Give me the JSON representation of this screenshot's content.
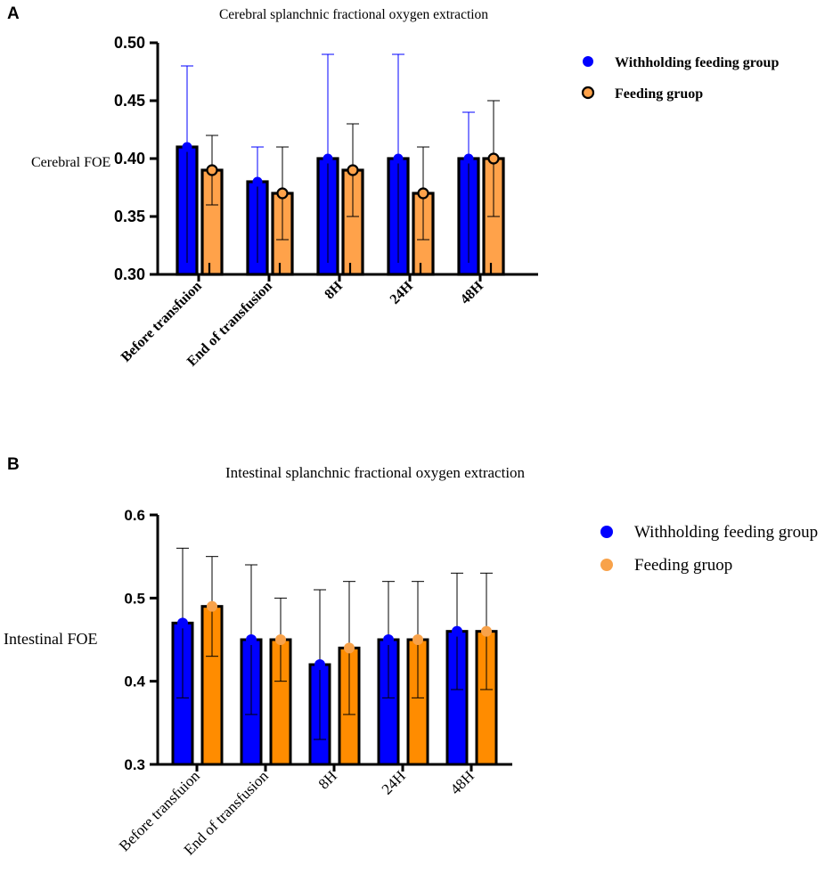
{
  "chart_data": [
    {
      "panel": "A",
      "type": "bar",
      "title": "Cerebral splanchnic fractional oxygen extraction",
      "xlabel": "",
      "ylabel": "Cerebral FOE",
      "ylim": [
        0.3,
        0.5
      ],
      "yticks": [
        0.3,
        0.35,
        0.4,
        0.45,
        0.5
      ],
      "ytick_labels": [
        "0.30",
        "0.35",
        "0.40",
        "0.45",
        "0.50"
      ],
      "grid": false,
      "legend_position": "right",
      "categories": [
        "Before transfuion",
        "End of transfusion",
        "8H",
        "24H",
        "48H"
      ],
      "series": [
        {
          "name": "Withholding feeding group",
          "color": "#0000ff",
          "values": [
            0.41,
            0.38,
            0.4,
            0.4,
            0.4
          ],
          "error_upper": [
            0.48,
            0.41,
            0.49,
            0.49,
            0.44
          ],
          "error_lower": [
            0.31,
            0.31,
            0.31,
            0.31,
            0.31
          ]
        },
        {
          "name": "Feeding gruop",
          "color": "#ffa24a",
          "values": [
            0.39,
            0.37,
            0.39,
            0.37,
            0.4
          ],
          "error_upper": [
            0.42,
            0.41,
            0.43,
            0.41,
            0.45
          ],
          "error_lower": [
            0.36,
            0.33,
            0.35,
            0.33,
            0.35
          ]
        }
      ]
    },
    {
      "panel": "B",
      "type": "bar",
      "title": "Intestinal splanchnic fractional oxygen extraction",
      "xlabel": "",
      "ylabel": "Intestinal FOE",
      "ylim": [
        0.3,
        0.6
      ],
      "yticks": [
        0.3,
        0.4,
        0.5,
        0.6
      ],
      "ytick_labels": [
        "0.3",
        "0.4",
        "0.5",
        "0.6"
      ],
      "grid": false,
      "legend_position": "right",
      "categories": [
        "Before transfuion",
        "End of transfusion",
        "8H",
        "24H",
        "48H"
      ],
      "series": [
        {
          "name": "Withholding feeding group",
          "color": "#0000ff",
          "values": [
            0.47,
            0.45,
            0.42,
            0.45,
            0.46
          ],
          "error_upper": [
            0.56,
            0.54,
            0.51,
            0.52,
            0.53
          ],
          "error_lower": [
            0.38,
            0.36,
            0.33,
            0.38,
            0.39
          ]
        },
        {
          "name": "Feeding gruop",
          "color": "#ff8c00",
          "marker_color": "#f8a24a",
          "values": [
            0.49,
            0.45,
            0.44,
            0.45,
            0.46
          ],
          "error_upper": [
            0.55,
            0.5,
            0.52,
            0.52,
            0.53
          ],
          "error_lower": [
            0.43,
            0.4,
            0.36,
            0.38,
            0.39
          ]
        }
      ]
    }
  ]
}
